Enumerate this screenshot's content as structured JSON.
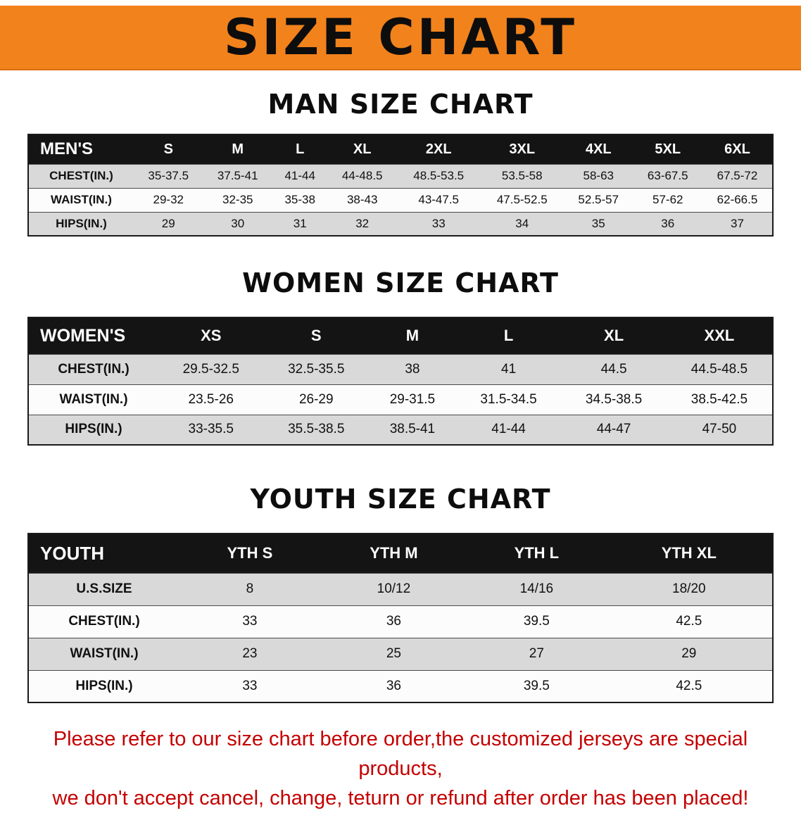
{
  "banner": {
    "title": "SIZE CHART",
    "bg_color": "#F2821C",
    "text_color": "#0d0d0d"
  },
  "colors": {
    "table_header_bg": "#141414",
    "table_header_text": "#ffffff",
    "row_stripe": "#d9d9d9",
    "disclaimer_text": "#c40000"
  },
  "sections": [
    {
      "id": "men",
      "heading": "MAN SIZE CHART",
      "table": {
        "title": "MEN'S",
        "header": [
          "MEN'S",
          "S",
          "M",
          "L",
          "XL",
          "2XL",
          "3XL",
          "4XL",
          "5XL",
          "6XL"
        ],
        "rows": [
          {
            "label": "CHEST(IN.)",
            "values": [
              "35-37.5",
              "37.5-41",
              "41-44",
              "44-48.5",
              "48.5-53.5",
              "53.5-58",
              "58-63",
              "63-67.5",
              "67.5-72"
            ]
          },
          {
            "label": "WAIST(IN.)",
            "values": [
              "29-32",
              "32-35",
              "35-38",
              "38-43",
              "43-47.5",
              "47.5-52.5",
              "52.5-57",
              "57-62",
              "62-66.5"
            ]
          },
          {
            "label": "HIPS(IN.)",
            "values": [
              "29",
              "30",
              "31",
              "32",
              "33",
              "34",
              "35",
              "36",
              "37"
            ]
          }
        ]
      }
    },
    {
      "id": "women",
      "heading": "WOMEN SIZE CHART",
      "table": {
        "title": "WOMEN'S",
        "header": [
          "WOMEN'S",
          "XS",
          "S",
          "M",
          "L",
          "XL",
          "XXL"
        ],
        "rows": [
          {
            "label": "CHEST(IN.)",
            "values": [
              "29.5-32.5",
              "32.5-35.5",
              "38",
              "41",
              "44.5",
              "44.5-48.5"
            ]
          },
          {
            "label": "WAIST(IN.)",
            "values": [
              "23.5-26",
              "26-29",
              "29-31.5",
              "31.5-34.5",
              "34.5-38.5",
              "38.5-42.5"
            ]
          },
          {
            "label": "HIPS(IN.)",
            "values": [
              "33-35.5",
              "35.5-38.5",
              "38.5-41",
              "41-44",
              "44-47",
              "47-50"
            ]
          }
        ]
      }
    },
    {
      "id": "youth",
      "heading": "YOUTH SIZE CHART",
      "table": {
        "title": "YOUTH",
        "header": [
          "YOUTH",
          "YTH S",
          "YTH M",
          "YTH L",
          "YTH XL"
        ],
        "rows": [
          {
            "label": "U.S.SIZE",
            "values": [
              "8",
              "10/12",
              "14/16",
              "18/20"
            ]
          },
          {
            "label": "CHEST(IN.)",
            "values": [
              "33",
              "36",
              "39.5",
              "42.5"
            ]
          },
          {
            "label": "WAIST(IN.)",
            "values": [
              "23",
              "25",
              "27",
              "29"
            ]
          },
          {
            "label": "HIPS(IN.)",
            "values": [
              "33",
              "36",
              "39.5",
              "42.5"
            ]
          }
        ]
      }
    }
  ],
  "disclaimer": {
    "line1": "Please refer to our size chart before order,the customized jerseys are special products,",
    "line2": "we don't accept cancel, change, teturn or refund after order has been placed!"
  }
}
